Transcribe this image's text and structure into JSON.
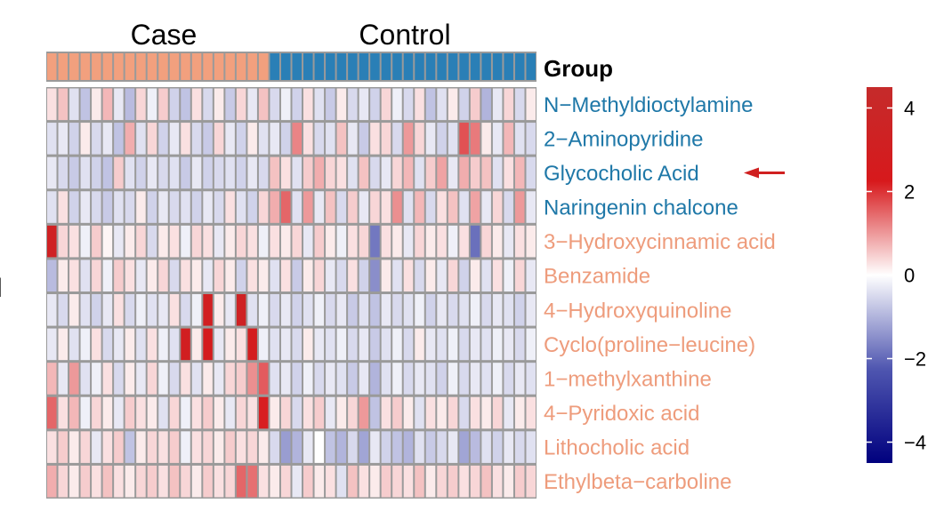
{
  "chart_data": {
    "type": "heatmap",
    "annotation": {
      "title": "Group",
      "groups": [
        {
          "name": "Case",
          "count": 20,
          "color": "#F2A07E"
        },
        {
          "name": "Control",
          "count": 24,
          "color": "#2A7FB6"
        }
      ]
    },
    "rows": [
      {
        "name": "N−Methyldioctylamine",
        "color": "#1F78A8"
      },
      {
        "name": "2−Aminopyridine",
        "color": "#1F78A8"
      },
      {
        "name": "Glycocholic Acid",
        "color": "#1F78A8",
        "highlight": true
      },
      {
        "name": "Naringenin chalcone",
        "color": "#1F78A8"
      },
      {
        "name": "3−Hydroxycinnamic acid",
        "color": "#EE9C7C"
      },
      {
        "name": "Benzamide",
        "color": "#EE9C7C"
      },
      {
        "name": "4−Hydroxyquinoline",
        "color": "#EE9C7C"
      },
      {
        "name": "Cyclo(proline−leucine)",
        "color": "#EE9C7C"
      },
      {
        "name": "1−methylxanthine",
        "color": "#EE9C7C"
      },
      {
        "name": "4−Pyridoxic acid",
        "color": "#EE9C7C"
      },
      {
        "name": "Lithocholic acid",
        "color": "#EE9C7C"
      },
      {
        "name": "Ethylbeta−carboline",
        "color": "#EE9C7C"
      }
    ],
    "values": [
      [
        0.3,
        0.6,
        -0.4,
        -0.8,
        0.2,
        0.7,
        -0.3,
        -0.9,
        0.4,
        -0.2,
        0.5,
        -0.6,
        -0.8,
        0.3,
        -0.5,
        0.2,
        -0.7,
        0.4,
        -0.3,
        0.6,
        -0.5,
        -0.2,
        -0.6,
        0.3,
        -0.4,
        -0.7,
        0.2,
        -0.5,
        -0.3,
        -0.6,
        0.4,
        -0.2,
        -0.5,
        0.3,
        -0.8,
        -0.4,
        0.2,
        -0.6,
        0.5,
        -1.0,
        -0.3,
        0.4,
        -0.5,
        0.2
      ],
      [
        -0.4,
        -0.3,
        -0.6,
        0.2,
        -0.5,
        -0.3,
        -0.8,
        0.8,
        -0.4,
        0.4,
        -0.6,
        -0.3,
        0.3,
        -0.5,
        -0.7,
        0.4,
        -0.3,
        -0.6,
        0.2,
        -0.4,
        -0.3,
        -0.6,
        1.2,
        0.3,
        -0.5,
        -0.4,
        0.6,
        -0.3,
        -0.7,
        0.3,
        0.4,
        -0.5,
        1.0,
        0.4,
        -0.3,
        -0.6,
        -0.4,
        1.7,
        1.3,
        0.2,
        -0.3,
        0.7,
        -0.4,
        -0.5
      ],
      [
        -0.3,
        -0.5,
        -0.7,
        -0.4,
        -0.6,
        -0.8,
        0.5,
        -0.4,
        -0.6,
        -0.3,
        -0.5,
        -0.4,
        -0.7,
        -0.3,
        -0.6,
        -0.5,
        -0.4,
        -0.6,
        -0.3,
        -0.5,
        0.6,
        0.3,
        -0.4,
        0.5,
        0.8,
        0.4,
        0.3,
        -0.4,
        0.6,
        -0.5,
        -0.3,
        0.4,
        0.7,
        -0.4,
        0.5,
        0.9,
        -0.3,
        0.8,
        0.5,
        0.6,
        -0.4,
        0.3,
        0.7,
        -0.5
      ],
      [
        -0.4,
        0.3,
        -0.6,
        -0.3,
        -0.5,
        -0.7,
        -0.4,
        -0.5,
        0.2,
        -0.6,
        -0.3,
        -0.5,
        -0.4,
        -0.6,
        -0.3,
        -0.5,
        0.3,
        -0.4,
        -0.6,
        0.4,
        0.8,
        1.5,
        -0.4,
        1.0,
        -0.3,
        0.6,
        -0.5,
        0.5,
        -0.3,
        0.4,
        0.3,
        1.1,
        -0.4,
        0.7,
        -0.5,
        0.3,
        0.6,
        -0.4,
        0.9,
        -0.3,
        0.4,
        -0.5,
        1.0,
        -0.3
      ],
      [
        3.3,
        0.4,
        0.3,
        -0.2,
        0.5,
        0.1,
        -0.3,
        0.2,
        0.4,
        -0.5,
        0.2,
        0.3,
        -0.2,
        0.4,
        0.3,
        -0.3,
        0.2,
        0.4,
        0.3,
        -0.2,
        0.3,
        0.2,
        0.4,
        -0.3,
        0.5,
        0.2,
        -0.2,
        0.3,
        0.4,
        -1.8,
        0.3,
        0.2,
        -0.3,
        0.4,
        0.2,
        0.3,
        -0.2,
        0.3,
        -1.9,
        0.4,
        0.2,
        -0.3,
        0.3,
        0.2
      ],
      [
        -0.9,
        0.2,
        0.3,
        -0.4,
        0.4,
        -0.2,
        0.5,
        0.3,
        -0.3,
        0.2,
        0.4,
        -0.5,
        0.3,
        0.2,
        -0.3,
        0.4,
        0.2,
        -0.6,
        0.3,
        0.2,
        -0.4,
        0.3,
        -0.7,
        0.2,
        0.4,
        -0.3,
        -0.5,
        0.3,
        -0.6,
        -1.5,
        0.2,
        -0.4,
        0.3,
        -0.5,
        0.2,
        -0.3,
        0.4,
        -0.6,
        0.2,
        -0.4,
        0.3,
        -0.2,
        0.4,
        -0.3
      ],
      [
        -0.3,
        -0.5,
        0.2,
        -0.4,
        -0.6,
        -0.3,
        0.3,
        -0.5,
        -0.2,
        -0.4,
        -0.3,
        0.3,
        -0.5,
        -0.2,
        3.0,
        0.2,
        -0.3,
        3.4,
        -0.4,
        -0.2,
        -0.5,
        -0.3,
        -0.6,
        -0.4,
        -0.2,
        -0.5,
        -0.3,
        -0.7,
        -0.4,
        -0.8,
        -0.3,
        -0.5,
        -0.4,
        -0.2,
        -0.6,
        -0.3,
        -0.5,
        -0.4,
        -0.2,
        -0.5,
        -0.3,
        -0.4,
        -0.6,
        -0.3
      ],
      [
        -0.3,
        0.2,
        -0.4,
        -0.2,
        0.3,
        -0.5,
        -0.3,
        0.2,
        -0.4,
        0.3,
        -0.2,
        -0.4,
        3.0,
        0.2,
        2.6,
        -0.3,
        0.2,
        0.3,
        2.7,
        -0.2,
        -0.4,
        -0.3,
        -0.5,
        0.2,
        -0.3,
        -0.4,
        -0.2,
        -0.5,
        -0.3,
        -0.7,
        -0.4,
        -0.2,
        -0.5,
        0.2,
        -0.3,
        -0.4,
        -0.2,
        -0.5,
        -0.3,
        -0.4,
        -0.2,
        -0.3,
        -0.5,
        -0.2
      ],
      [
        0.7,
        -0.3,
        1.0,
        -0.4,
        -0.2,
        0.3,
        -0.5,
        0.2,
        -0.3,
        0.4,
        -0.2,
        -0.5,
        0.3,
        -0.4,
        0.2,
        -0.3,
        0.4,
        0.5,
        1.1,
        1.6,
        -0.4,
        -0.3,
        -0.6,
        -0.2,
        -0.5,
        -0.3,
        -0.4,
        -0.7,
        -0.3,
        -1.0,
        -0.4,
        -0.2,
        -0.5,
        -0.3,
        -0.4,
        -0.6,
        -0.2,
        -0.5,
        -0.3,
        -0.4,
        -0.2,
        -0.5,
        -0.3,
        -0.4
      ],
      [
        1.5,
        0.3,
        0.7,
        -0.2,
        0.4,
        0.2,
        -0.3,
        0.5,
        0.3,
        0.2,
        -0.4,
        0.4,
        -0.2,
        0.3,
        0.5,
        0.2,
        -0.3,
        0.4,
        0.3,
        2.2,
        0.2,
        0.4,
        -0.5,
        0.3,
        0.5,
        -0.3,
        0.2,
        0.4,
        1.0,
        -0.8,
        0.3,
        0.5,
        0.2,
        -0.4,
        0.3,
        0.2,
        0.4,
        -0.5,
        0.3,
        0.2,
        0.4,
        -0.3,
        0.2,
        0.3
      ],
      [
        0.3,
        0.5,
        0.2,
        0.4,
        -0.3,
        0.3,
        0.5,
        -0.8,
        0.2,
        0.4,
        0.3,
        0.5,
        -0.2,
        0.3,
        0.4,
        0.2,
        0.5,
        0.3,
        0.4,
        0.2,
        -0.5,
        -1.3,
        -1.0,
        -0.3,
        0.0,
        -0.8,
        -1.0,
        -0.5,
        -1.2,
        -0.3,
        -0.6,
        -0.8,
        -1.0,
        -0.4,
        -0.7,
        -0.5,
        -0.3,
        -1.2,
        -0.9,
        -0.4,
        -0.6,
        -0.3,
        -0.5,
        -0.4
      ],
      [
        0.8,
        0.4,
        0.2,
        0.5,
        0.3,
        0.6,
        0.3,
        0.2,
        0.4,
        0.5,
        0.3,
        0.6,
        0.4,
        0.2,
        0.5,
        0.3,
        0.4,
        1.5,
        1.4,
        0.3,
        0.2,
        0.4,
        -0.3,
        0.5,
        0.2,
        0.3,
        -0.4,
        0.6,
        0.3,
        0.2,
        0.5,
        0.4,
        0.3,
        0.6,
        0.2,
        0.4,
        0.5,
        0.3,
        0.4,
        0.6,
        0.3,
        0.2,
        0.5,
        0.4
      ]
    ],
    "color_scale": {
      "min": -4.5,
      "max": 4.5,
      "colors": [
        "#00007E",
        "#4F56B0",
        "#FFFFFF",
        "#D7191C",
        "#C52B2B"
      ],
      "ticks": [
        4,
        2,
        0,
        -2,
        -4
      ],
      "tick_labels": [
        "4",
        "2",
        "0",
        "−2",
        "−4"
      ]
    },
    "column_labels": [
      "Case",
      "Control"
    ],
    "left_edge_label": "l",
    "arrow_color": "#D02020"
  }
}
